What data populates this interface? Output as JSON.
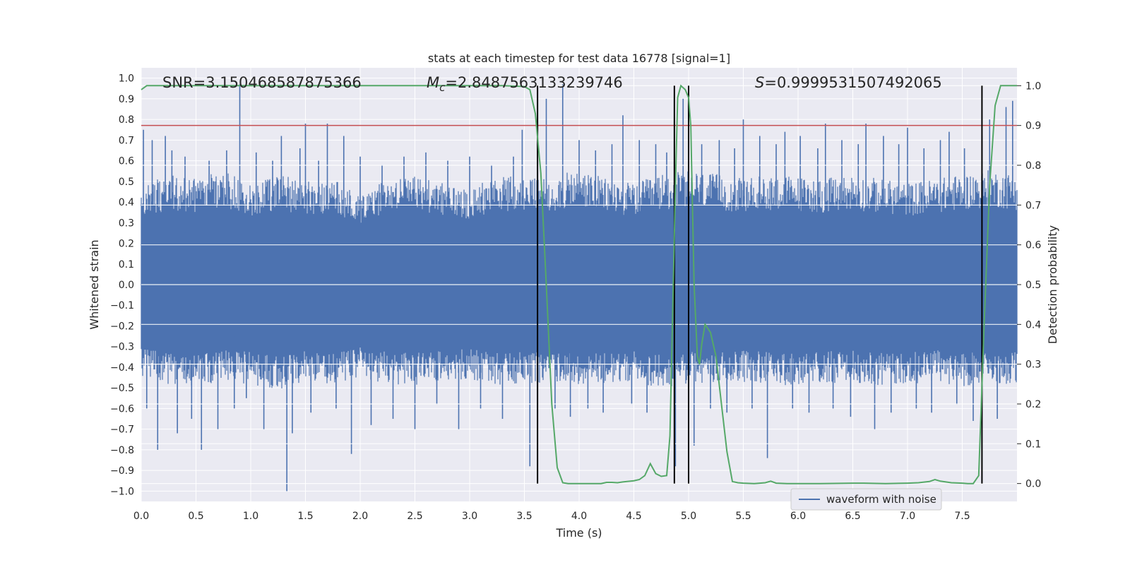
{
  "chart_data": {
    "type": "line",
    "title": "stats at each timestep for test data 16778 [signal=1]",
    "xlabel": "Time (s)",
    "ylabel": "Whitened strain",
    "y2label": "Detection probability",
    "xlim": [
      0.0,
      8.0
    ],
    "ylim": [
      -1.05,
      1.05
    ],
    "y2lim": [
      -0.045,
      1.045
    ],
    "xticks": [
      "0.0",
      "0.5",
      "1.0",
      "1.5",
      "2.0",
      "2.5",
      "3.0",
      "3.5",
      "4.0",
      "4.5",
      "5.0",
      "5.5",
      "6.0",
      "6.5",
      "7.0",
      "7.5"
    ],
    "yticks": [
      "1.0",
      "0.9",
      "0.8",
      "0.7",
      "0.6",
      "0.5",
      "0.4",
      "0.3",
      "0.2",
      "0.1",
      "0.0",
      "−0.1",
      "−0.2",
      "−0.3",
      "−0.4",
      "−0.5",
      "−0.6",
      "−0.7",
      "−0.8",
      "−0.9",
      "−1.0"
    ],
    "y2ticks": [
      "1.0",
      "0.9",
      "0.8",
      "0.7",
      "0.6",
      "0.5",
      "0.4",
      "0.3",
      "0.2",
      "0.1",
      "0.0"
    ],
    "annotations": {
      "snr": "SNR=3.150468587875366",
      "mc": "=2.8487563133239746",
      "mc_symbol": "M",
      "mc_sub": "c",
      "s": "=0.9999531507492065",
      "s_symbol": "S"
    },
    "threshold": {
      "value": 0.9,
      "axis": "right",
      "color": "#c44e52"
    },
    "event_markers_x": [
      3.62,
      4.87,
      5.0,
      7.68
    ],
    "colors": {
      "waveform": "#4c72b0",
      "probability": "#55a868",
      "marker": "#000000"
    },
    "legend": {
      "label": "waveform with noise",
      "placement": "lower-right"
    },
    "series": [
      {
        "name": "waveform with noise",
        "axis": "left",
        "envelope_x": [
          0.0,
          0.25,
          0.5,
          0.75,
          1.0,
          1.25,
          1.5,
          1.75,
          2.0,
          2.25,
          2.5,
          2.75,
          3.0,
          3.25,
          3.5,
          3.75,
          4.0,
          4.25,
          4.5,
          4.75,
          5.0,
          5.25,
          5.5,
          5.75,
          6.0,
          6.25,
          6.5,
          6.75,
          7.0,
          7.25,
          7.5,
          7.75,
          8.0
        ],
        "envelope_upper": [
          0.45,
          0.5,
          0.48,
          0.52,
          0.46,
          0.5,
          0.47,
          0.48,
          0.4,
          0.48,
          0.5,
          0.46,
          0.44,
          0.5,
          0.48,
          0.49,
          0.52,
          0.48,
          0.46,
          0.5,
          0.52,
          0.5,
          0.48,
          0.5,
          0.49,
          0.48,
          0.5,
          0.48,
          0.46,
          0.48,
          0.5,
          0.52,
          0.5
        ],
        "envelope_lower": [
          -0.42,
          -0.45,
          -0.46,
          -0.44,
          -0.45,
          -0.48,
          -0.44,
          -0.46,
          -0.42,
          -0.45,
          -0.46,
          -0.44,
          -0.43,
          -0.46,
          -0.45,
          -0.44,
          -0.46,
          -0.45,
          -0.44,
          -0.47,
          -0.45,
          -0.46,
          -0.44,
          -0.45,
          -0.46,
          -0.45,
          -0.44,
          -0.46,
          -0.45,
          -0.44,
          -0.46,
          -0.45,
          -0.45
        ],
        "spikes_x": [
          0.02,
          0.05,
          0.1,
          0.15,
          0.22,
          0.28,
          0.33,
          0.4,
          0.46,
          0.55,
          0.62,
          0.7,
          0.78,
          0.85,
          0.9,
          0.96,
          1.05,
          1.12,
          1.2,
          1.28,
          1.33,
          1.38,
          1.45,
          1.5,
          1.55,
          1.62,
          1.7,
          1.78,
          1.85,
          1.92,
          2.0,
          2.1,
          2.2,
          2.3,
          2.4,
          2.5,
          2.6,
          2.7,
          2.8,
          2.9,
          3.0,
          3.1,
          3.2,
          3.3,
          3.4,
          3.48,
          3.55,
          3.62,
          3.7,
          3.78,
          3.85,
          3.92,
          4.0,
          4.08,
          4.15,
          4.22,
          4.3,
          4.4,
          4.48,
          4.55,
          4.62,
          4.7,
          4.8,
          4.88,
          4.95,
          5.05,
          5.12,
          5.2,
          5.28,
          5.35,
          5.42,
          5.5,
          5.58,
          5.65,
          5.72,
          5.8,
          5.88,
          5.95,
          6.02,
          6.1,
          6.18,
          6.25,
          6.32,
          6.4,
          6.48,
          6.55,
          6.62,
          6.7,
          6.78,
          6.85,
          6.92,
          7.0,
          7.08,
          7.15,
          7.22,
          7.3,
          7.38,
          7.45,
          7.52,
          7.6,
          7.68,
          7.75,
          7.82,
          7.9,
          7.96
        ],
        "spikes_y": [
          0.75,
          -0.6,
          0.7,
          -0.8,
          0.72,
          0.65,
          -0.72,
          0.62,
          -0.65,
          -0.8,
          0.6,
          -0.7,
          0.65,
          -0.6,
          0.97,
          -0.55,
          0.64,
          -0.7,
          0.6,
          0.72,
          -1.0,
          -0.72,
          0.66,
          0.78,
          -0.62,
          0.6,
          0.78,
          -0.6,
          0.72,
          -0.82,
          0.62,
          -0.68,
          0.58,
          -0.65,
          0.62,
          -0.7,
          0.64,
          -0.58,
          0.6,
          -0.7,
          0.62,
          -0.6,
          0.58,
          -0.65,
          0.62,
          0.75,
          -0.88,
          -0.64,
          0.9,
          -0.6,
          0.97,
          -0.64,
          0.7,
          -0.6,
          0.65,
          -0.62,
          0.68,
          0.82,
          -0.58,
          0.7,
          -0.62,
          0.68,
          0.64,
          -0.88,
          0.9,
          -0.78,
          0.68,
          -0.6,
          0.7,
          -0.62,
          0.66,
          0.8,
          -0.6,
          0.72,
          -0.84,
          0.68,
          0.74,
          -0.6,
          0.72,
          -0.62,
          0.66,
          0.78,
          -0.6,
          0.7,
          -0.64,
          0.68,
          0.78,
          -0.7,
          0.72,
          -0.62,
          0.68,
          0.76,
          -0.6,
          0.66,
          -0.62,
          0.7,
          0.74,
          -0.58,
          0.66,
          -0.66,
          0.72,
          0.8,
          -0.65,
          0.86,
          0.89
        ]
      },
      {
        "name": "detection probability",
        "axis": "right",
        "x": [
          0.0,
          0.05,
          0.3,
          0.6,
          1.0,
          1.5,
          2.0,
          2.5,
          3.0,
          3.3,
          3.5,
          3.55,
          3.6,
          3.65,
          3.7,
          3.75,
          3.8,
          3.85,
          3.9,
          4.0,
          4.1,
          4.2,
          4.25,
          4.3,
          4.35,
          4.4,
          4.5,
          4.55,
          4.6,
          4.65,
          4.7,
          4.75,
          4.8,
          4.83,
          4.86,
          4.88,
          4.9,
          4.93,
          4.97,
          5.0,
          5.02,
          5.05,
          5.08,
          5.1,
          5.12,
          5.15,
          5.2,
          5.25,
          5.3,
          5.35,
          5.4,
          5.45,
          5.5,
          5.6,
          5.7,
          5.75,
          5.8,
          5.9,
          6.0,
          6.2,
          6.5,
          6.6,
          6.8,
          7.0,
          7.1,
          7.2,
          7.25,
          7.3,
          7.4,
          7.5,
          7.55,
          7.6,
          7.65,
          7.7,
          7.75,
          7.8,
          7.85,
          7.9,
          8.0
        ],
        "y": [
          0.99,
          1.0,
          1.0,
          1.0,
          1.0,
          1.0,
          1.0,
          1.0,
          1.0,
          1.0,
          0.998,
          0.99,
          0.93,
          0.78,
          0.5,
          0.2,
          0.04,
          0.002,
          0.0,
          0.0,
          0.0,
          0.0,
          0.003,
          0.003,
          0.002,
          0.004,
          0.007,
          0.01,
          0.02,
          0.05,
          0.025,
          0.018,
          0.02,
          0.12,
          0.5,
          0.75,
          0.97,
          1.0,
          0.99,
          0.97,
          0.9,
          0.5,
          0.32,
          0.3,
          0.35,
          0.4,
          0.38,
          0.32,
          0.2,
          0.08,
          0.005,
          0.002,
          0.001,
          0.0,
          0.002,
          0.006,
          0.001,
          0.0,
          0.0,
          0.0,
          0.001,
          0.001,
          0.0,
          0.001,
          0.002,
          0.005,
          0.01,
          0.006,
          0.002,
          0.001,
          0.0,
          0.0,
          0.02,
          0.4,
          0.75,
          0.95,
          1.0,
          1.0,
          1.0
        ]
      }
    ]
  }
}
